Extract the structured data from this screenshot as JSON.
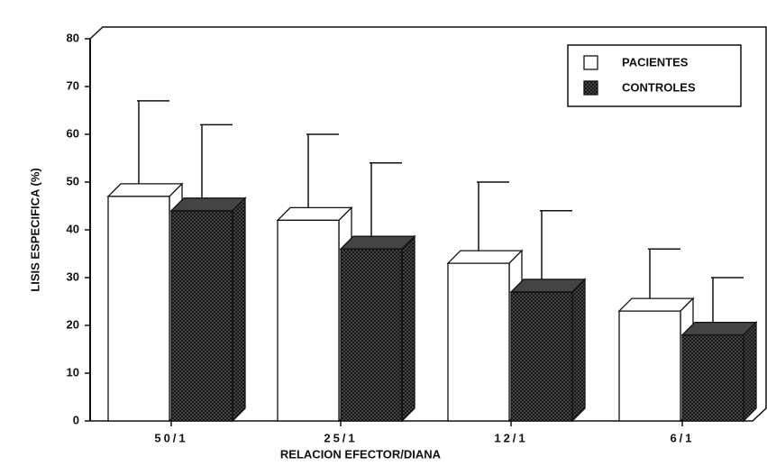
{
  "chart_data": {
    "type": "bar",
    "y_label": "LISIS ESPECIFICA (%)",
    "x_label": "RELACION EFECTOR/DIANA",
    "categories": [
      "50/1",
      "25/1",
      "12/1",
      "6/1"
    ],
    "series": [
      {
        "name": "PACIENTES",
        "color": "#ffffff",
        "values": [
          47,
          42,
          33,
          23
        ],
        "errors": [
          20,
          18,
          17,
          13
        ]
      },
      {
        "name": "CONTROLES",
        "color": "#3a3a3a",
        "values": [
          44,
          36,
          27,
          18
        ],
        "errors": [
          18,
          18,
          17,
          12
        ]
      }
    ],
    "ylim": [
      0,
      80
    ],
    "yticks": [
      0,
      10,
      20,
      30,
      40,
      50,
      60,
      70,
      80
    ],
    "legend": "top-right"
  }
}
